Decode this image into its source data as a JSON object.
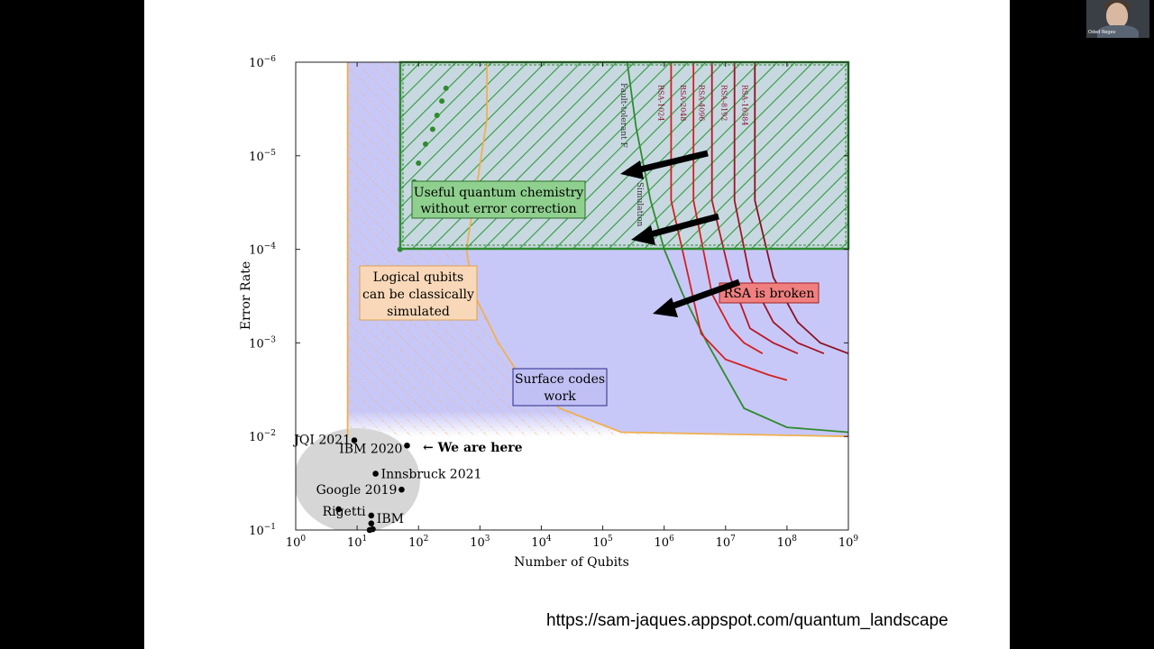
{
  "video": {
    "participant_name": "Oded Regev",
    "slide_url": "https://sam-jaques.appspot.com/quantum_landscape"
  },
  "chart_data": {
    "type": "scatter",
    "xlabel": "Number of Qubits",
    "ylabel": "Error Rate",
    "xscale": "log",
    "yscale": "log",
    "xlim": [
      1,
      1000000000
    ],
    "ylim": [
      0.1,
      1e-06
    ],
    "y_axis_inverted": true,
    "x_ticks": [
      {
        "value": 1,
        "base": "10",
        "exp": "0"
      },
      {
        "value": 10,
        "base": "10",
        "exp": "1"
      },
      {
        "value": 100,
        "base": "10",
        "exp": "2"
      },
      {
        "value": 1000,
        "base": "10",
        "exp": "3"
      },
      {
        "value": 10000,
        "base": "10",
        "exp": "4"
      },
      {
        "value": 100000,
        "base": "10",
        "exp": "5"
      },
      {
        "value": 1000000,
        "base": "10",
        "exp": "6"
      },
      {
        "value": 10000000,
        "base": "10",
        "exp": "7"
      },
      {
        "value": 100000000,
        "base": "10",
        "exp": "8"
      },
      {
        "value": 1000000000,
        "base": "10",
        "exp": "9"
      }
    ],
    "y_ticks": [
      {
        "value": 1e-06,
        "base": "10",
        "exp": "−6"
      },
      {
        "value": 1e-05,
        "base": "10",
        "exp": "−5"
      },
      {
        "value": 0.0001,
        "base": "10",
        "exp": "−4"
      },
      {
        "value": 0.001,
        "base": "10",
        "exp": "−3"
      },
      {
        "value": 0.01,
        "base": "10",
        "exp": "−2"
      },
      {
        "value": 0.1,
        "base": "10",
        "exp": "−1"
      }
    ],
    "colors": {
      "surface_fill": "#c8c8f8",
      "green": "#2e8b2e",
      "orange": "#f0b050",
      "red": "#d42020",
      "darkred": "#8b1020",
      "gray_blob": "#d8d8d8"
    },
    "regions": [
      {
        "name": "Useful quantum chemistry without error correction",
        "x_from": 50,
        "x_to": 1000000000,
        "y_from": 1e-06,
        "y_to": 0.0001
      }
    ],
    "curves": {
      "classical_simulation": [
        {
          "x": 7,
          "y": 1e-06
        },
        {
          "x": 7,
          "y": 0.01
        }
      ],
      "logical_simulation": [
        {
          "x": 1300,
          "y": 1e-06
        },
        {
          "x": 1300,
          "y": 4e-06
        },
        {
          "x": 900,
          "y": 2e-05
        },
        {
          "x": 600,
          "y": 0.0001
        },
        {
          "x": 800,
          "y": 0.0003
        },
        {
          "x": 2000,
          "y": 0.001
        },
        {
          "x": 4000,
          "y": 0.002
        },
        {
          "x": 20000,
          "y": 0.005
        },
        {
          "x": 200000,
          "y": 0.009
        },
        {
          "x": 1000000000,
          "y": 0.01
        }
      ],
      "fault_tolerant_simulation": [
        {
          "x": 250000,
          "y": 1e-06
        },
        {
          "x": 350000,
          "y": 5e-06
        },
        {
          "x": 600000,
          "y": 3e-05
        },
        {
          "x": 1000000,
          "y": 0.0001
        },
        {
          "x": 2000000,
          "y": 0.0003
        },
        {
          "x": 5000000,
          "y": 0.001
        },
        {
          "x": 20000000,
          "y": 0.005
        },
        {
          "x": 100000000,
          "y": 0.008
        },
        {
          "x": 1000000000,
          "y": 0.009
        }
      ],
      "rsa": [
        {
          "name": "RSA-1024",
          "points": [
            {
              "x": 1300000,
              "y": 1e-06
            },
            {
              "x": 1300000,
              "y": 3e-05
            },
            {
              "x": 2500000,
              "y": 0.0002
            },
            {
              "x": 4000000,
              "y": 0.0008
            },
            {
              "x": 10000000,
              "y": 0.0015
            },
            {
              "x": 50000000,
              "y": 0.0022
            },
            {
              "x": 100000000,
              "y": 0.0025
            }
          ]
        },
        {
          "name": "RSA-2048",
          "points": [
            {
              "x": 3000000,
              "y": 1e-06
            },
            {
              "x": 3000000,
              "y": 3e-05
            },
            {
              "x": 6000000,
              "y": 0.0003
            },
            {
              "x": 12000000,
              "y": 0.0007
            },
            {
              "x": 20000000,
              "y": 0.001
            },
            {
              "x": 40000000,
              "y": 0.0013
            }
          ]
        },
        {
          "name": "RSA-4096",
          "points": [
            {
              "x": 6000000,
              "y": 1e-06
            },
            {
              "x": 6000000,
              "y": 3e-05
            },
            {
              "x": 12000000,
              "y": 0.0002
            },
            {
              "x": 25000000,
              "y": 0.0007
            },
            {
              "x": 60000000,
              "y": 0.001
            },
            {
              "x": 150000000,
              "y": 0.0013
            }
          ]
        },
        {
          "name": "RSA-8192",
          "points": [
            {
              "x": 14000000,
              "y": 1e-06
            },
            {
              "x": 14000000,
              "y": 3e-05
            },
            {
              "x": 25000000,
              "y": 0.0002
            },
            {
              "x": 60000000,
              "y": 0.0006
            },
            {
              "x": 150000000,
              "y": 0.001
            },
            {
              "x": 400000000,
              "y": 0.0013
            }
          ]
        },
        {
          "name": "RSA-16384",
          "points": [
            {
              "x": 30000000,
              "y": 1e-06
            },
            {
              "x": 30000000,
              "y": 3e-05
            },
            {
              "x": 60000000,
              "y": 0.0002
            },
            {
              "x": 150000000,
              "y": 0.0006
            },
            {
              "x": 350000000,
              "y": 0.001
            },
            {
              "x": 1000000000,
              "y": 0.0013
            }
          ]
        }
      ],
      "green_dots": [
        {
          "x": 85,
          "y": 1.9e-05
        },
        {
          "x": 100,
          "y": 1.2e-05
        },
        {
          "x": 130,
          "y": 7.5e-06
        },
        {
          "x": 170,
          "y": 5.2e-06
        },
        {
          "x": 200,
          "y": 3.7e-06
        },
        {
          "x": 240,
          "y": 2.6e-06
        },
        {
          "x": 280,
          "y": 1.9e-06
        }
      ]
    },
    "devices": [
      {
        "label": "JQI 2021",
        "x": 9,
        "y": 0.011
      },
      {
        "label": "IBM 2020",
        "x": 65,
        "y": 0.0125
      },
      {
        "label": "Innsbruck 2021",
        "x": 20,
        "y": 0.025
      },
      {
        "label": "Google 2019",
        "x": 53,
        "y": 0.037
      },
      {
        "label": "Rigetti",
        "x": 5,
        "y": 0.06
      },
      {
        "label": "IBM",
        "x": 17,
        "y": 0.07
      },
      {
        "label": "",
        "x": 17,
        "y": 0.085
      },
      {
        "label": "",
        "x": 16,
        "y": 0.1
      },
      {
        "label": "",
        "x": 18,
        "y": 0.098
      }
    ],
    "annotations": {
      "we_are_here": "← We are here",
      "useful_chemistry": [
        "Useful quantum chemistry",
        "without error correction"
      ],
      "logical_qubits": [
        "Logical qubits",
        "can be classically",
        "simulated"
      ],
      "surface_codes": [
        "Surface codes",
        "work"
      ],
      "rsa_broken": "RSA is broken",
      "fault_tolerant": "Fault-tolerant F",
      "fault_tolerant_tail": "Simulation"
    }
  }
}
